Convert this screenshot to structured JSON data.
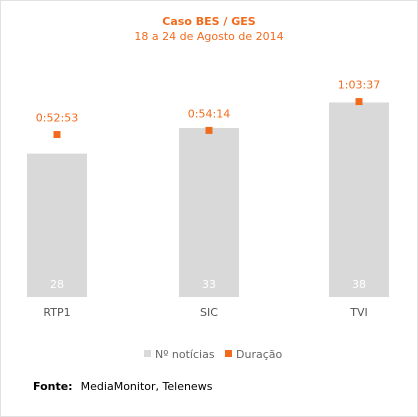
{
  "chart_data": {
    "type": "bar",
    "title": "Caso BES / GES",
    "subtitle": "18 a 24 de Agosto de 2014",
    "categories": [
      "RTP1",
      "SIC",
      "TVI"
    ],
    "series": [
      {
        "name": "Nº notícias",
        "type": "bar",
        "color": "#d9d9d9",
        "values": [
          28,
          33,
          38
        ]
      },
      {
        "name": "Duração",
        "type": "scatter",
        "color": "#f26b1d",
        "values": [
          3173,
          3254,
          3817
        ],
        "labels": [
          "0:52:53",
          "0:54:14",
          "1:03:37"
        ]
      }
    ],
    "ylim_bars": [
      0,
      50
    ],
    "ylim_duration_seconds": [
      0,
      5000
    ],
    "legend_position": "bottom",
    "grid": false
  },
  "source": {
    "key": "Fonte:",
    "value": "MediaMonitor, Telenews"
  }
}
